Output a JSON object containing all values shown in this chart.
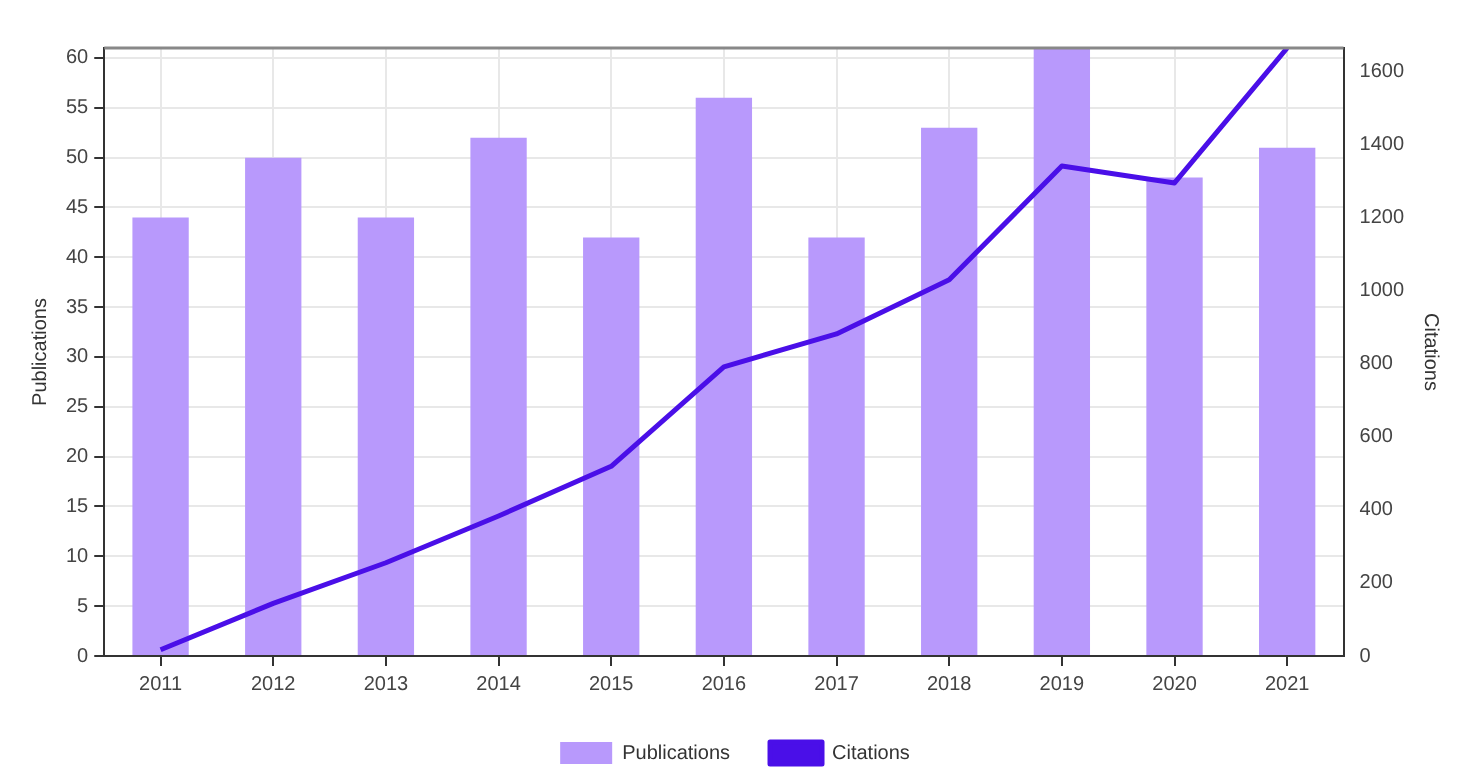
{
  "chart_data": {
    "type": "bar",
    "categories": [
      "2011",
      "2012",
      "2013",
      "2014",
      "2015",
      "2016",
      "2017",
      "2018",
      "2019",
      "2020",
      "2021"
    ],
    "series": [
      {
        "name": "Publications",
        "color": "#b899fc",
        "values": [
          44,
          50,
          44,
          52,
          42,
          56,
          42,
          53,
          61,
          48,
          51
        ]
      },
      {
        "name": "Citations",
        "type": "line",
        "axis": "y2",
        "color": "#4a0fe8",
        "values": [
          17,
          144,
          255,
          383,
          519,
          791,
          881,
          1029,
          1340,
          1294,
          1663
        ]
      }
    ],
    "ylabel": "Publications",
    "y2label": "Citations",
    "ylim": [
      0,
      61
    ],
    "yticks": [
      0,
      5,
      10,
      15,
      20,
      25,
      30,
      35,
      40,
      45,
      50,
      55,
      60
    ],
    "y2lim": [
      0,
      1663
    ],
    "y2ticks": [
      0,
      200,
      400,
      600,
      800,
      1000,
      1200,
      1400,
      1600
    ],
    "grid": true,
    "legend": "bottom",
    "marker": "none"
  }
}
